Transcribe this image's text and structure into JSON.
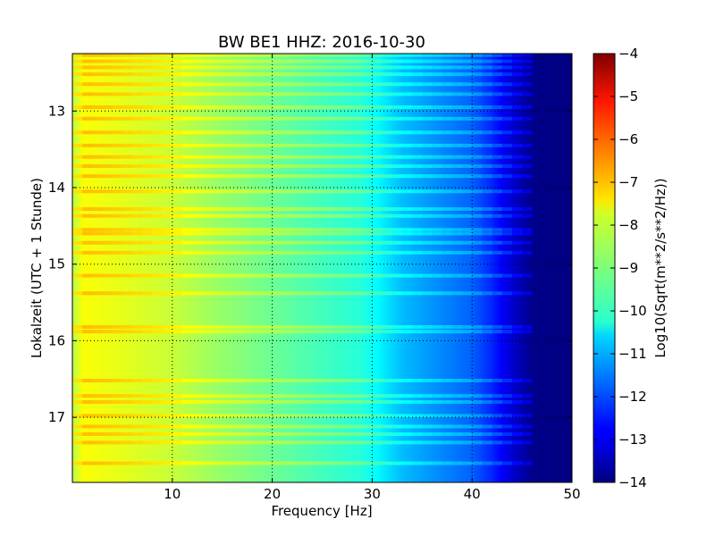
{
  "chart_data": {
    "type": "heatmap",
    "title": "BW BE1 HHZ: 2016-10-30",
    "xlabel": "Frequency [Hz]",
    "ylabel": "Lokalzeit (UTC + 1 Stunde)",
    "xlim": [
      0,
      50
    ],
    "ylim": [
      12.25,
      17.85
    ],
    "y_inverted": true,
    "x_ticks": [
      10,
      20,
      30,
      40,
      50
    ],
    "x_tick_labels": [
      "10",
      "20",
      "30",
      "40",
      "50"
    ],
    "y_ticks": [
      13,
      14,
      15,
      16,
      17
    ],
    "y_tick_labels": [
      "13",
      "14",
      "15",
      "16",
      "17"
    ],
    "grid": true,
    "grid_style": "dotted",
    "colorbar": {
      "label": "Log10(Sqrt(m**2/s**2/Hz))",
      "colormap": "jet",
      "vmin": -14,
      "vmax": -4,
      "ticks": [
        -4,
        -5,
        -6,
        -7,
        -8,
        -9,
        -10,
        -11,
        -12,
        -13,
        -14
      ],
      "tick_labels": [
        "−4",
        "−5",
        "−6",
        "−7",
        "−8",
        "−9",
        "−10",
        "−11",
        "−12",
        "−13",
        "−14"
      ]
    },
    "spectrum_profile": {
      "frequency_hz": [
        0,
        1,
        5,
        10,
        15,
        20,
        25,
        29,
        31,
        33,
        36,
        40,
        42,
        44,
        46,
        50
      ],
      "log10_amplitude": [
        -8.5,
        -7.8,
        -8.0,
        -8.3,
        -8.8,
        -9.2,
        -9.6,
        -9.9,
        -10.4,
        -10.9,
        -11.3,
        -11.8,
        -12.4,
        -13.2,
        -13.9,
        -14.0
      ]
    },
    "bright_time_bands_hours": [
      12.27,
      12.35,
      12.43,
      12.52,
      12.65,
      12.78,
      12.95,
      13.1,
      13.28,
      13.45,
      13.6,
      13.72,
      13.85,
      14.05,
      14.28,
      14.37,
      14.55,
      14.6,
      14.72,
      14.85,
      15.15,
      15.38,
      15.82,
      15.88,
      16.52,
      16.72,
      16.8,
      16.98,
      17.12,
      17.22,
      17.33,
      17.6
    ]
  }
}
